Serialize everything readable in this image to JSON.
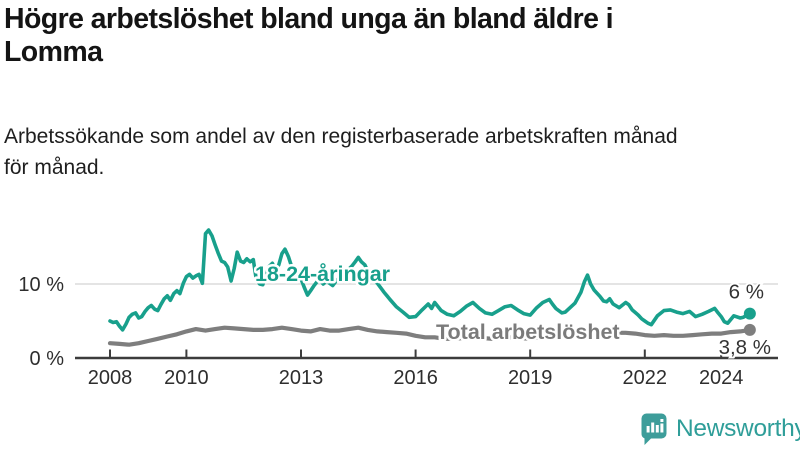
{
  "header": {
    "title_line1": "Högre arbetslöshet bland unga än bland äldre i",
    "title_line2": "Lomma",
    "title_full": "Högre arbetslöshet bland unga än bland äldre i Lomma",
    "subtitle_line1": "Arbetssökande som andel av den registerbaserade arbetskraften månad",
    "subtitle_line2": "för månad.",
    "subtitle_full": "Arbetssökande som andel av den registerbaserade arbetskraften månad för månad."
  },
  "footer": {
    "brand": "Newsworthy",
    "brand_icon": "newsworthy-speech-bubble-bar-chart-icon"
  },
  "colors": {
    "youth_teal": "#18A08C",
    "total_gray": "#7E7E7E",
    "logo_teal": "#3D9D9A",
    "grid": "#DBDBDB",
    "axis": "#3C3C3C",
    "tick_text": "#2E2E2E",
    "value_text": "#333333"
  },
  "chart_data": {
    "type": "line",
    "unit": "%",
    "xlim": [
      2007.9,
      2025.2
    ],
    "ylim": [
      0,
      17.5
    ],
    "grid": "y-10-only",
    "legend_position": "inline-labels",
    "y_ticks": [
      {
        "value": 0,
        "label": "0 %"
      },
      {
        "value": 10,
        "label": "10 %",
        "gridline": true
      }
    ],
    "x_ticks": [
      {
        "year": 2008,
        "label": "2008"
      },
      {
        "year": 2010,
        "label": "2010"
      },
      {
        "year": 2013,
        "label": "2013"
      },
      {
        "year": 2016,
        "label": "2016"
      },
      {
        "year": 2019,
        "label": "2019"
      },
      {
        "year": 2022,
        "label": "2022"
      },
      {
        "year": 2024,
        "label": "2024"
      }
    ],
    "series": [
      {
        "name": "18-24-åringar",
        "color": "#18A08C",
        "end_label": "6 %",
        "end_value": 6.0,
        "points": [
          [
            2008.0,
            5.0
          ],
          [
            2008.08,
            4.8
          ],
          [
            2008.17,
            4.9
          ],
          [
            2008.25,
            4.3
          ],
          [
            2008.33,
            3.8
          ],
          [
            2008.42,
            4.6
          ],
          [
            2008.5,
            5.5
          ],
          [
            2008.58,
            5.9
          ],
          [
            2008.67,
            6.1
          ],
          [
            2008.75,
            5.4
          ],
          [
            2008.83,
            5.6
          ],
          [
            2008.92,
            6.3
          ],
          [
            2009.0,
            6.8
          ],
          [
            2009.08,
            7.1
          ],
          [
            2009.17,
            6.6
          ],
          [
            2009.25,
            6.4
          ],
          [
            2009.33,
            7.2
          ],
          [
            2009.42,
            8.0
          ],
          [
            2009.5,
            8.4
          ],
          [
            2009.58,
            7.8
          ],
          [
            2009.67,
            8.7
          ],
          [
            2009.75,
            9.1
          ],
          [
            2009.83,
            8.7
          ],
          [
            2009.92,
            10.1
          ],
          [
            2010.0,
            11.0
          ],
          [
            2010.08,
            11.3
          ],
          [
            2010.17,
            10.8
          ],
          [
            2010.25,
            11.1
          ],
          [
            2010.33,
            11.3
          ],
          [
            2010.42,
            10.1
          ],
          [
            2010.5,
            16.8
          ],
          [
            2010.58,
            17.3
          ],
          [
            2010.67,
            16.5
          ],
          [
            2010.75,
            15.3
          ],
          [
            2010.83,
            14.2
          ],
          [
            2010.92,
            13.1
          ],
          [
            2011.0,
            12.9
          ],
          [
            2011.08,
            12.3
          ],
          [
            2011.17,
            10.4
          ],
          [
            2011.25,
            12.1
          ],
          [
            2011.33,
            14.3
          ],
          [
            2011.42,
            13.1
          ],
          [
            2011.5,
            12.9
          ],
          [
            2011.58,
            13.4
          ],
          [
            2011.67,
            13.0
          ],
          [
            2011.75,
            13.3
          ],
          [
            2011.83,
            10.6
          ],
          [
            2011.92,
            10.0
          ],
          [
            2012.0,
            9.9
          ],
          [
            2012.08,
            11.3
          ],
          [
            2012.17,
            12.4
          ],
          [
            2012.25,
            12.8
          ],
          [
            2012.33,
            11.8
          ],
          [
            2012.42,
            12.6
          ],
          [
            2012.5,
            14.1
          ],
          [
            2012.58,
            14.7
          ],
          [
            2012.67,
            13.7
          ],
          [
            2012.75,
            12.4
          ],
          [
            2012.83,
            11.9
          ],
          [
            2012.92,
            11.3
          ],
          [
            2013.0,
            10.7
          ],
          [
            2013.08,
            9.6
          ],
          [
            2013.17,
            8.5
          ],
          [
            2013.25,
            9.1
          ],
          [
            2013.33,
            9.7
          ],
          [
            2013.42,
            10.3
          ],
          [
            2013.5,
            10.5
          ],
          [
            2013.58,
            10.0
          ],
          [
            2013.67,
            10.4
          ],
          [
            2013.75,
            10.1
          ],
          [
            2013.83,
            9.8
          ],
          [
            2013.92,
            10.4
          ],
          [
            2014.0,
            10.9
          ],
          [
            2014.17,
            11.6
          ],
          [
            2014.33,
            12.4
          ],
          [
            2014.42,
            13.0
          ],
          [
            2014.5,
            13.6
          ],
          [
            2014.58,
            13.0
          ],
          [
            2014.67,
            12.6
          ],
          [
            2014.75,
            11.7
          ],
          [
            2014.83,
            11.1
          ],
          [
            2014.92,
            10.5
          ],
          [
            2015.0,
            10.1
          ],
          [
            2015.17,
            8.9
          ],
          [
            2015.25,
            8.4
          ],
          [
            2015.33,
            7.9
          ],
          [
            2015.5,
            6.9
          ],
          [
            2015.67,
            6.2
          ],
          [
            2015.83,
            5.5
          ],
          [
            2016.0,
            5.6
          ],
          [
            2016.17,
            6.5
          ],
          [
            2016.33,
            7.3
          ],
          [
            2016.42,
            6.7
          ],
          [
            2016.5,
            7.5
          ],
          [
            2016.67,
            6.4
          ],
          [
            2016.83,
            5.9
          ],
          [
            2017.0,
            5.7
          ],
          [
            2017.17,
            6.3
          ],
          [
            2017.33,
            7.0
          ],
          [
            2017.5,
            7.5
          ],
          [
            2017.67,
            6.7
          ],
          [
            2017.83,
            6.1
          ],
          [
            2018.0,
            5.9
          ],
          [
            2018.17,
            6.4
          ],
          [
            2018.33,
            6.9
          ],
          [
            2018.5,
            7.1
          ],
          [
            2018.67,
            6.5
          ],
          [
            2018.83,
            6.0
          ],
          [
            2019.0,
            5.8
          ],
          [
            2019.17,
            6.8
          ],
          [
            2019.33,
            7.5
          ],
          [
            2019.5,
            7.9
          ],
          [
            2019.58,
            7.3
          ],
          [
            2019.67,
            6.7
          ],
          [
            2019.83,
            6.1
          ],
          [
            2019.92,
            6.2
          ],
          [
            2020.0,
            6.6
          ],
          [
            2020.17,
            7.4
          ],
          [
            2020.33,
            8.9
          ],
          [
            2020.42,
            10.3
          ],
          [
            2020.5,
            11.2
          ],
          [
            2020.58,
            10.0
          ],
          [
            2020.67,
            9.2
          ],
          [
            2020.83,
            8.3
          ],
          [
            2020.92,
            7.7
          ],
          [
            2021.0,
            7.6
          ],
          [
            2021.08,
            8.0
          ],
          [
            2021.17,
            7.3
          ],
          [
            2021.33,
            6.8
          ],
          [
            2021.5,
            7.5
          ],
          [
            2021.58,
            7.2
          ],
          [
            2021.67,
            6.5
          ],
          [
            2021.83,
            5.8
          ],
          [
            2021.92,
            5.3
          ],
          [
            2022.0,
            5.0
          ],
          [
            2022.08,
            4.7
          ],
          [
            2022.17,
            4.5
          ],
          [
            2022.33,
            5.7
          ],
          [
            2022.5,
            6.4
          ],
          [
            2022.67,
            6.5
          ],
          [
            2022.83,
            6.2
          ],
          [
            2023.0,
            6.0
          ],
          [
            2023.17,
            6.3
          ],
          [
            2023.33,
            5.6
          ],
          [
            2023.5,
            5.9
          ],
          [
            2023.67,
            6.3
          ],
          [
            2023.83,
            6.7
          ],
          [
            2023.92,
            6.1
          ],
          [
            2024.0,
            5.6
          ],
          [
            2024.08,
            4.9
          ],
          [
            2024.17,
            4.7
          ],
          [
            2024.33,
            5.7
          ],
          [
            2024.5,
            5.4
          ],
          [
            2024.58,
            5.5
          ],
          [
            2024.67,
            5.8
          ],
          [
            2024.75,
            6.0
          ]
        ]
      },
      {
        "name": "Total arbetslöshet",
        "color": "#7E7E7E",
        "end_label": "3,8 %",
        "end_value": 3.8,
        "points": [
          [
            2008.0,
            2.0
          ],
          [
            2008.25,
            1.9
          ],
          [
            2008.5,
            1.8
          ],
          [
            2008.75,
            2.0
          ],
          [
            2009.0,
            2.3
          ],
          [
            2009.25,
            2.6
          ],
          [
            2009.5,
            2.9
          ],
          [
            2009.75,
            3.2
          ],
          [
            2010.0,
            3.6
          ],
          [
            2010.25,
            3.9
          ],
          [
            2010.5,
            3.7
          ],
          [
            2010.75,
            3.9
          ],
          [
            2011.0,
            4.1
          ],
          [
            2011.25,
            4.0
          ],
          [
            2011.5,
            3.9
          ],
          [
            2011.75,
            3.8
          ],
          [
            2012.0,
            3.8
          ],
          [
            2012.25,
            3.9
          ],
          [
            2012.5,
            4.1
          ],
          [
            2012.75,
            3.9
          ],
          [
            2013.0,
            3.7
          ],
          [
            2013.25,
            3.6
          ],
          [
            2013.5,
            3.9
          ],
          [
            2013.75,
            3.7
          ],
          [
            2014.0,
            3.7
          ],
          [
            2014.25,
            3.9
          ],
          [
            2014.5,
            4.1
          ],
          [
            2014.75,
            3.8
          ],
          [
            2015.0,
            3.6
          ],
          [
            2015.25,
            3.5
          ],
          [
            2015.5,
            3.4
          ],
          [
            2015.75,
            3.3
          ],
          [
            2016.0,
            3.0
          ],
          [
            2016.25,
            2.8
          ],
          [
            2016.5,
            2.8
          ],
          [
            2016.75,
            2.6
          ],
          [
            2017.0,
            2.6
          ],
          [
            2017.25,
            2.7
          ],
          [
            2017.5,
            2.8
          ],
          [
            2017.75,
            2.7
          ],
          [
            2018.0,
            2.6
          ],
          [
            2018.25,
            2.7
          ],
          [
            2018.5,
            2.8
          ],
          [
            2018.75,
            2.7
          ],
          [
            2019.0,
            2.6
          ],
          [
            2019.25,
            2.8
          ],
          [
            2019.5,
            2.9
          ],
          [
            2019.75,
            2.8
          ],
          [
            2020.0,
            2.9
          ],
          [
            2020.25,
            3.3
          ],
          [
            2020.5,
            3.8
          ],
          [
            2020.75,
            3.7
          ],
          [
            2021.0,
            3.5
          ],
          [
            2021.25,
            3.4
          ],
          [
            2021.5,
            3.4
          ],
          [
            2021.75,
            3.3
          ],
          [
            2022.0,
            3.1
          ],
          [
            2022.25,
            3.0
          ],
          [
            2022.5,
            3.1
          ],
          [
            2022.75,
            3.0
          ],
          [
            2023.0,
            3.0
          ],
          [
            2023.25,
            3.1
          ],
          [
            2023.5,
            3.2
          ],
          [
            2023.75,
            3.3
          ],
          [
            2024.0,
            3.3
          ],
          [
            2024.25,
            3.5
          ],
          [
            2024.5,
            3.6
          ],
          [
            2024.75,
            3.8
          ]
        ]
      }
    ]
  }
}
